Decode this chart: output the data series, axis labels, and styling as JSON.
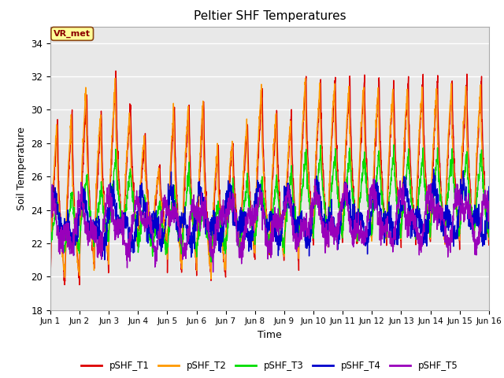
{
  "title": "Peltier SHF Temperatures",
  "xlabel": "Time",
  "ylabel": "Soil Temperature",
  "ylim": [
    18,
    35
  ],
  "xlim": [
    0,
    15
  ],
  "xtick_labels": [
    "Jun 1",
    "Jun 2",
    "Jun 3",
    "Jun 4",
    "Jun 5",
    "Jun 6",
    "Jun 7",
    "Jun 8",
    "Jun 9",
    "Jun 10",
    "Jun 11",
    "Jun 12",
    "Jun 13",
    "Jun 14",
    "Jun 15",
    "Jun 16"
  ],
  "ytick_vals": [
    18,
    20,
    22,
    24,
    26,
    28,
    30,
    32,
    34
  ],
  "legend_labels": [
    "pSHF_T1",
    "pSHF_T2",
    "pSHF_T3",
    "pSHF_T4",
    "pSHF_T5"
  ],
  "colors": [
    "#dd0000",
    "#ff9900",
    "#00dd00",
    "#0000cc",
    "#9900bb"
  ],
  "annotation_text": "VR_met",
  "bg_color": "#e8e8e8",
  "line_width": 1.0,
  "n_points": 2160,
  "figsize": [
    6.4,
    4.8
  ],
  "dpi": 100
}
